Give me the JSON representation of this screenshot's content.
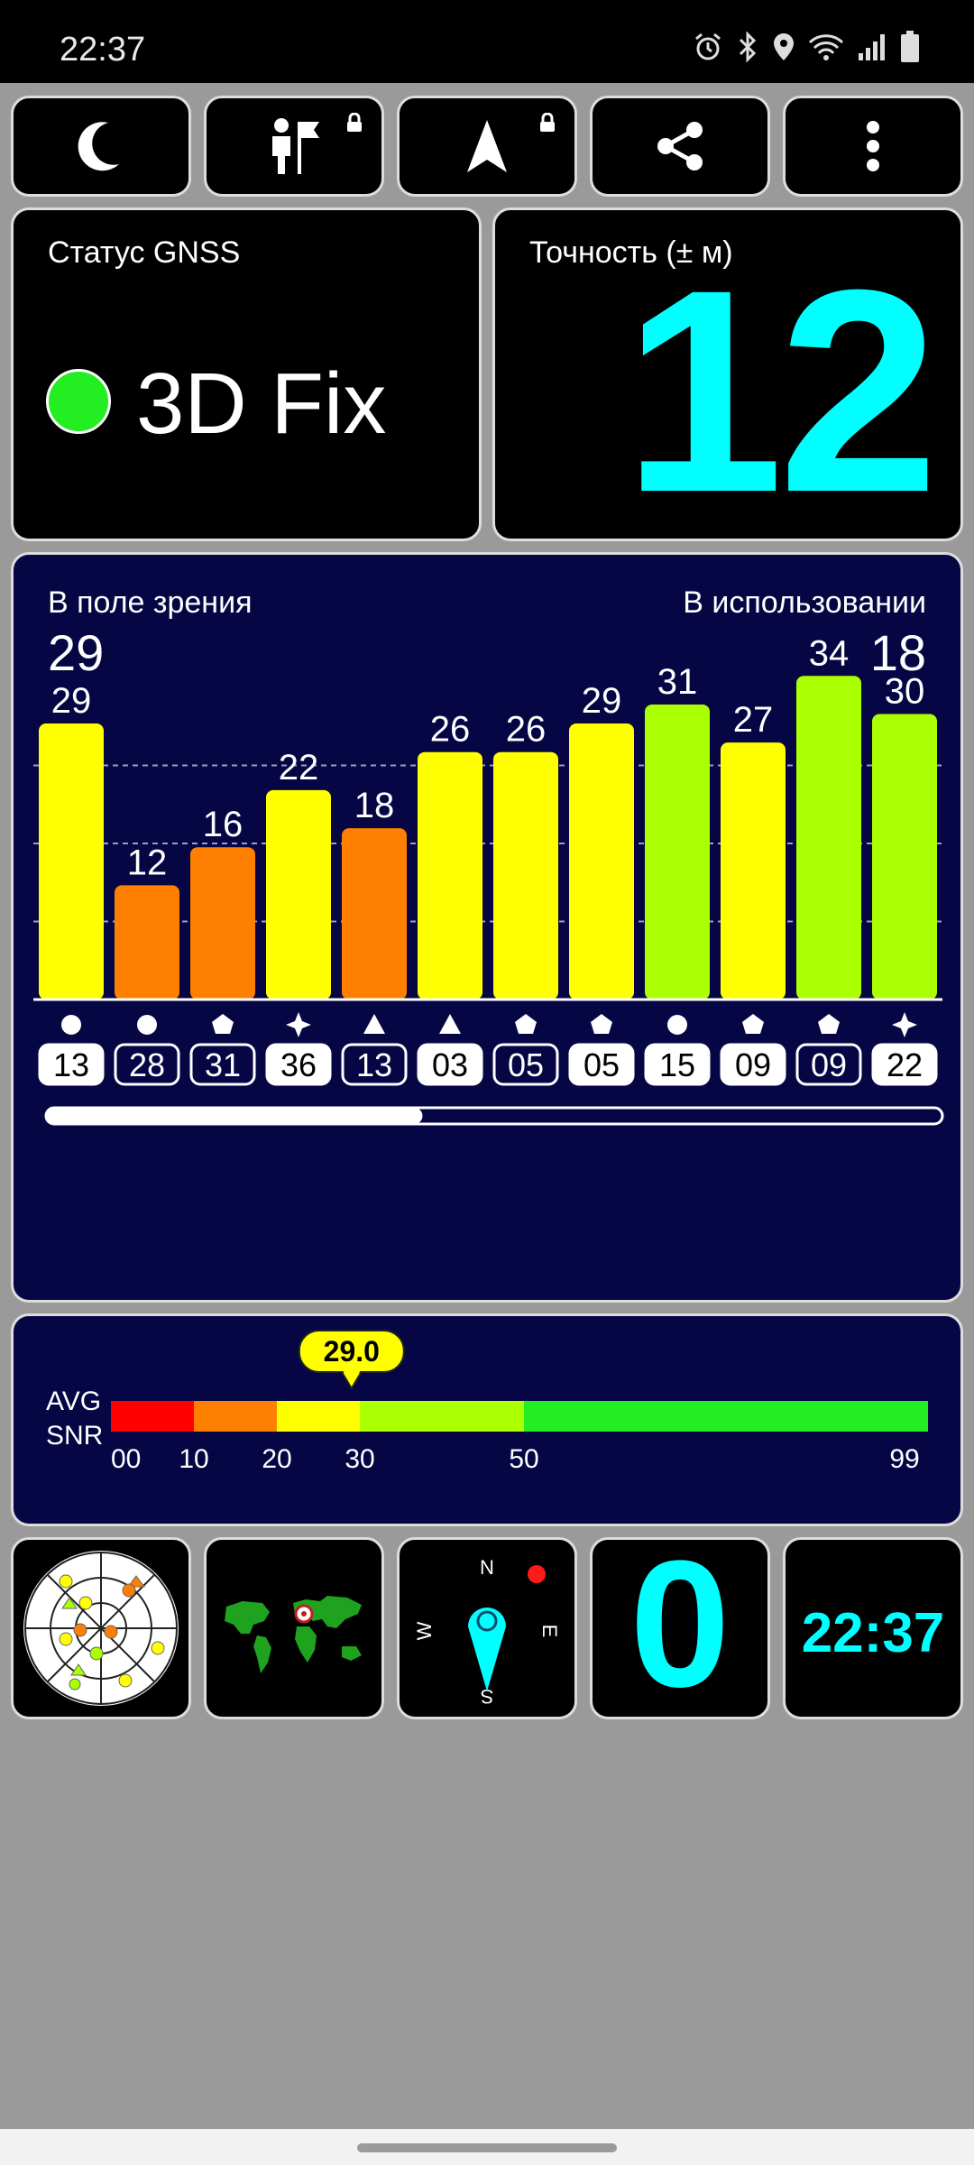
{
  "status_bar": {
    "time": "22:37",
    "icons": [
      "alarm-icon",
      "bluetooth-icon",
      "location-icon",
      "wifi-icon",
      "signal-icon",
      "battery-icon"
    ]
  },
  "toolbar": {
    "buttons": [
      {
        "name": "night-mode-button",
        "icon": "moon-icon",
        "locked": false
      },
      {
        "name": "waypoint-button",
        "icon": "person-flag-icon",
        "locked": true
      },
      {
        "name": "navigate-button",
        "icon": "navigation-arrow-icon",
        "locked": true
      },
      {
        "name": "share-button",
        "icon": "share-icon",
        "locked": false
      },
      {
        "name": "menu-button",
        "icon": "more-vertical-icon",
        "locked": false
      }
    ]
  },
  "gnss_status": {
    "label": "Статус GNSS",
    "value": "3D Fix",
    "indicator_color": "#22ee22"
  },
  "accuracy": {
    "label": "Точность (± м)",
    "value": "12",
    "color": "#00ffff"
  },
  "satellites": {
    "in_view_label": "В поле зрения",
    "in_view": "29",
    "in_use_label": "В использовании",
    "in_use": "18"
  },
  "chart_data": {
    "type": "bar",
    "ylim": [
      0,
      99
    ],
    "gridlines": [
      25,
      50,
      75
    ],
    "grid": true,
    "bars": [
      {
        "snr": 29,
        "id": "13",
        "shape": "circle",
        "used": true,
        "color": "#ffff00"
      },
      {
        "snr": 12,
        "id": "28",
        "shape": "circle",
        "used": false,
        "color": "#ff8000"
      },
      {
        "snr": 16,
        "id": "31",
        "shape": "pentagon",
        "used": false,
        "color": "#ff8000"
      },
      {
        "snr": 22,
        "id": "36",
        "shape": "star",
        "used": true,
        "color": "#ffff00"
      },
      {
        "snr": 18,
        "id": "13",
        "shape": "triangle",
        "used": false,
        "color": "#ff8000"
      },
      {
        "snr": 26,
        "id": "03",
        "shape": "triangle",
        "used": true,
        "color": "#ffff00"
      },
      {
        "snr": 26,
        "id": "05",
        "shape": "pentagon",
        "used": false,
        "color": "#ffff00"
      },
      {
        "snr": 29,
        "id": "05",
        "shape": "pentagon",
        "used": true,
        "color": "#ffff00"
      },
      {
        "snr": 31,
        "id": "15",
        "shape": "circle",
        "used": true,
        "color": "#aaff00"
      },
      {
        "snr": 27,
        "id": "09",
        "shape": "pentagon",
        "used": true,
        "color": "#ffff00"
      },
      {
        "snr": 34,
        "id": "09",
        "shape": "pentagon",
        "used": false,
        "color": "#aaff00"
      },
      {
        "snr": 30,
        "id": "22",
        "shape": "star",
        "used": true,
        "color": "#aaff00"
      }
    ],
    "scroll_position": 0.42
  },
  "avg_snr": {
    "label_line1": "AVG",
    "label_line2": "SNR",
    "value": "29.0",
    "value_num": 29.0,
    "ticks": [
      "00",
      "10",
      "20",
      "30",
      "50",
      "99"
    ],
    "tick_values": [
      0,
      10,
      20,
      30,
      50,
      99
    ],
    "segments": [
      {
        "from": 0,
        "to": 10,
        "color": "#ff0000"
      },
      {
        "from": 10,
        "to": 20,
        "color": "#ff8000"
      },
      {
        "from": 20,
        "to": 30,
        "color": "#ffff00"
      },
      {
        "from": 30,
        "to": 50,
        "color": "#aaff00"
      },
      {
        "from": 50,
        "to": 99,
        "color": "#22ee22"
      }
    ]
  },
  "bottom_widgets": {
    "speed": "0",
    "clock": "22:37",
    "compass": {
      "n": "N",
      "e": "E",
      "s": "S",
      "w": "W"
    },
    "accent": "#00ffff"
  }
}
